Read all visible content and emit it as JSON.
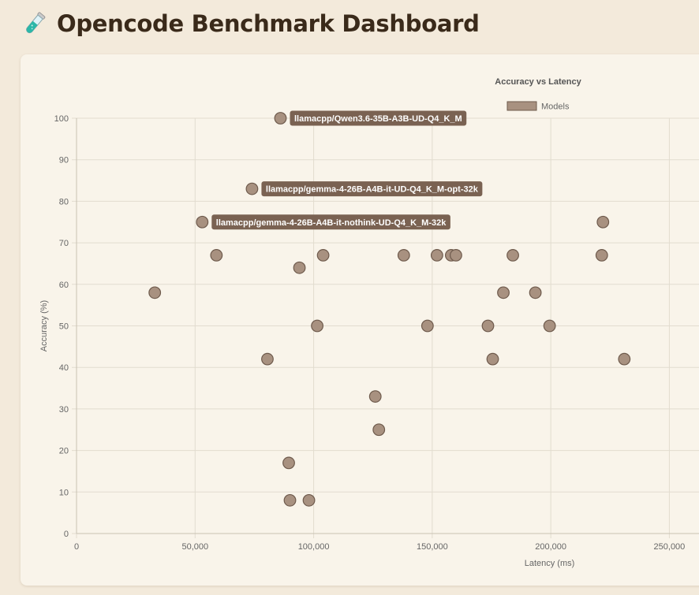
{
  "page": {
    "title": "Opencode Benchmark Dashboard",
    "title_icon": "test-tube-icon"
  },
  "colors": {
    "background": "#f3eadb",
    "card": "#f9f4ea",
    "title": "#3a2a1a",
    "point_fill": "#a89180",
    "point_stroke": "#6e5a4c",
    "annotation_bg": "#7a6252"
  },
  "chart_data": {
    "type": "scatter",
    "title": "Accuracy vs Latency",
    "xlabel": "Latency (ms)",
    "ylabel": "Accuracy (%)",
    "xlim": [
      0,
      262500
    ],
    "ylim": [
      0,
      100
    ],
    "xticks": [
      0,
      50000,
      100000,
      150000,
      200000,
      250000
    ],
    "xtick_labels": [
      "0",
      "50,000",
      "100,000",
      "150,000",
      "200,000",
      "250,000"
    ],
    "yticks": [
      0,
      10,
      20,
      30,
      40,
      50,
      60,
      70,
      80,
      90,
      100
    ],
    "ytick_labels": [
      "0",
      "10",
      "20",
      "30",
      "40",
      "50",
      "60",
      "70",
      "80",
      "90",
      "100"
    ],
    "grid": true,
    "legend": {
      "position": "top",
      "entries": [
        "Models"
      ]
    },
    "series": [
      {
        "name": "Models",
        "points": [
          {
            "x": 86000,
            "y": 100
          },
          {
            "x": 74000,
            "y": 83
          },
          {
            "x": 53000,
            "y": 75
          },
          {
            "x": 222000,
            "y": 75
          },
          {
            "x": 59000,
            "y": 67
          },
          {
            "x": 104000,
            "y": 67
          },
          {
            "x": 138000,
            "y": 67
          },
          {
            "x": 152000,
            "y": 67
          },
          {
            "x": 158000,
            "y": 67
          },
          {
            "x": 160000,
            "y": 67
          },
          {
            "x": 184000,
            "y": 67
          },
          {
            "x": 221500,
            "y": 67
          },
          {
            "x": 94000,
            "y": 64
          },
          {
            "x": 33000,
            "y": 58
          },
          {
            "x": 180000,
            "y": 58
          },
          {
            "x": 193500,
            "y": 58
          },
          {
            "x": 101500,
            "y": 50
          },
          {
            "x": 148000,
            "y": 50
          },
          {
            "x": 173500,
            "y": 50
          },
          {
            "x": 199500,
            "y": 50
          },
          {
            "x": 80500,
            "y": 42
          },
          {
            "x": 175500,
            "y": 42
          },
          {
            "x": 231000,
            "y": 42
          },
          {
            "x": 126000,
            "y": 33
          },
          {
            "x": 127500,
            "y": 25
          },
          {
            "x": 89500,
            "y": 17
          },
          {
            "x": 90000,
            "y": 8
          },
          {
            "x": 98000,
            "y": 8
          }
        ]
      }
    ],
    "annotations": [
      {
        "text": "llamacpp/Qwen3.6-35B-A3B-UD-Q4_K_M",
        "x": 86000,
        "y": 100
      },
      {
        "text": "llamacpp/gemma-4-26B-A4B-it-UD-Q4_K_M-opt-32k",
        "x": 74000,
        "y": 83
      },
      {
        "text": "llamacpp/gemma-4-26B-A4B-it-nothink-UD-Q4_K_M-32k",
        "x": 53000,
        "y": 75
      }
    ]
  }
}
